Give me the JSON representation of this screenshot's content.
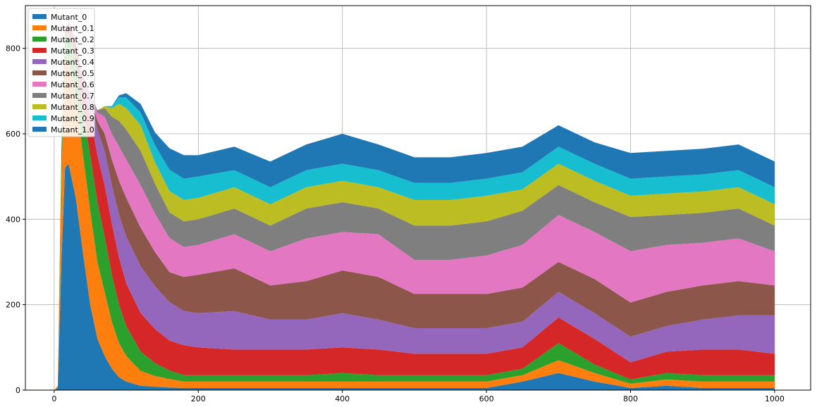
{
  "chart_data": {
    "type": "area",
    "stacked": true,
    "title": "",
    "xlabel": "",
    "ylabel": "",
    "xlim": [
      -40,
      1050
    ],
    "ylim": [
      0,
      900
    ],
    "xticks": [
      0,
      200,
      400,
      600,
      800,
      1000
    ],
    "yticks": [
      0,
      200,
      400,
      600,
      800
    ],
    "grid": true,
    "legend_position": "top-left",
    "x": [
      0,
      5,
      10,
      15,
      20,
      30,
      40,
      50,
      60,
      70,
      80,
      90,
      100,
      120,
      140,
      160,
      180,
      200,
      250,
      300,
      350,
      400,
      450,
      500,
      550,
      600,
      650,
      700,
      750,
      800,
      850,
      900,
      950,
      1000
    ],
    "series": [
      {
        "name": "Mutant_0",
        "color": "#1f77b4",
        "values": [
          0,
          5,
          300,
          520,
          530,
          450,
          320,
          200,
          120,
          80,
          50,
          30,
          20,
          10,
          8,
          6,
          5,
          5,
          5,
          5,
          5,
          5,
          5,
          5,
          5,
          5,
          20,
          40,
          20,
          5,
          10,
          5,
          5,
          5
        ]
      },
      {
        "name": "Mutant_0.1",
        "color": "#ff7f0e",
        "values": [
          0,
          5,
          200,
          250,
          250,
          240,
          230,
          220,
          180,
          150,
          110,
          80,
          60,
          35,
          25,
          20,
          15,
          15,
          15,
          15,
          15,
          15,
          15,
          15,
          15,
          15,
          15,
          30,
          20,
          10,
          15,
          15,
          15,
          15
        ]
      },
      {
        "name": "Mutant_0.2",
        "color": "#2ca02c",
        "values": [
          0,
          0,
          60,
          60,
          60,
          80,
          100,
          130,
          140,
          130,
          110,
          90,
          70,
          45,
          30,
          20,
          15,
          15,
          15,
          15,
          15,
          20,
          15,
          15,
          15,
          15,
          15,
          40,
          20,
          10,
          15,
          15,
          15,
          15
        ]
      },
      {
        "name": "Mutant_0.3",
        "color": "#d62728",
        "values": [
          0,
          0,
          0,
          10,
          20,
          40,
          60,
          90,
          110,
          120,
          120,
          110,
          100,
          90,
          80,
          70,
          70,
          65,
          60,
          60,
          60,
          60,
          60,
          50,
          50,
          50,
          50,
          60,
          60,
          40,
          50,
          60,
          60,
          50
        ]
      },
      {
        "name": "Mutant_0.4",
        "color": "#9467bd",
        "values": [
          0,
          0,
          0,
          0,
          5,
          10,
          20,
          40,
          60,
          80,
          90,
          100,
          110,
          110,
          100,
          90,
          80,
          80,
          90,
          70,
          70,
          80,
          70,
          60,
          60,
          60,
          60,
          60,
          60,
          60,
          60,
          70,
          80,
          90
        ]
      },
      {
        "name": "Mutant_0.5",
        "color": "#8c564b",
        "values": [
          0,
          0,
          0,
          0,
          0,
          0,
          5,
          10,
          20,
          40,
          60,
          80,
          90,
          90,
          80,
          70,
          80,
          90,
          100,
          80,
          90,
          100,
          100,
          80,
          80,
          80,
          80,
          70,
          80,
          80,
          80,
          80,
          80,
          70
        ]
      },
      {
        "name": "Mutant_0.6",
        "color": "#e377c2",
        "values": [
          0,
          0,
          0,
          0,
          0,
          0,
          0,
          5,
          20,
          40,
          60,
          80,
          90,
          100,
          90,
          80,
          70,
          70,
          80,
          80,
          100,
          90,
          100,
          80,
          80,
          90,
          100,
          110,
          110,
          120,
          110,
          100,
          100,
          80
        ]
      },
      {
        "name": "Mutant_0.7",
        "color": "#7f7f7f",
        "values": [
          0,
          0,
          0,
          0,
          0,
          0,
          0,
          0,
          5,
          20,
          40,
          60,
          70,
          80,
          70,
          60,
          60,
          60,
          60,
          60,
          70,
          70,
          60,
          80,
          80,
          80,
          80,
          70,
          70,
          80,
          70,
          70,
          70,
          60
        ]
      },
      {
        "name": "Mutant_0.8",
        "color": "#bcbd22",
        "values": [
          0,
          0,
          0,
          0,
          0,
          0,
          0,
          0,
          0,
          5,
          20,
          40,
          50,
          60,
          50,
          50,
          50,
          50,
          50,
          50,
          50,
          50,
          50,
          60,
          60,
          60,
          50,
          50,
          50,
          50,
          50,
          50,
          50,
          50
        ]
      },
      {
        "name": "Mutant_0.9",
        "color": "#17becf",
        "values": [
          0,
          0,
          0,
          0,
          0,
          0,
          0,
          0,
          0,
          0,
          5,
          15,
          25,
          30,
          40,
          50,
          50,
          50,
          40,
          40,
          40,
          40,
          40,
          40,
          40,
          40,
          40,
          40,
          40,
          40,
          40,
          40,
          40,
          40
        ]
      },
      {
        "name": "Mutant_1.0",
        "color": "#1f77b4",
        "values": [
          0,
          0,
          0,
          0,
          0,
          0,
          0,
          0,
          0,
          0,
          0,
          5,
          10,
          20,
          30,
          50,
          55,
          50,
          55,
          60,
          60,
          70,
          60,
          60,
          60,
          60,
          60,
          50,
          50,
          60,
          60,
          60,
          60,
          60
        ]
      }
    ]
  }
}
